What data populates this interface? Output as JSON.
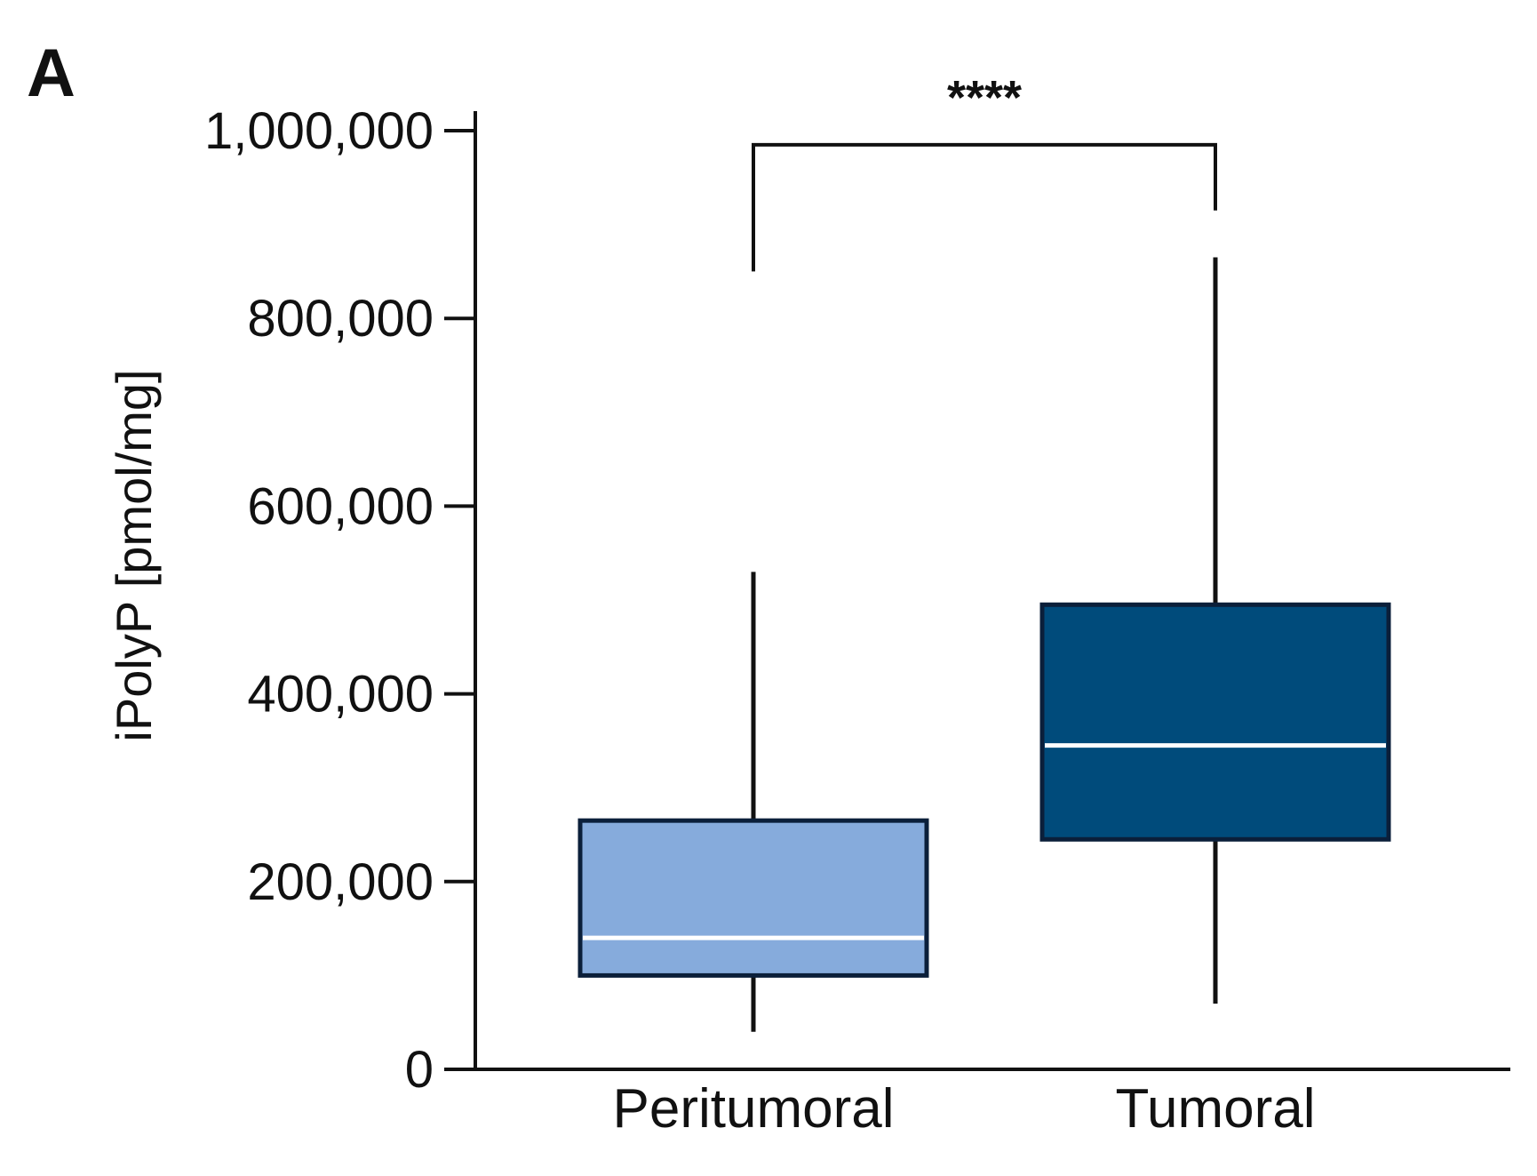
{
  "panel_label": "A",
  "chart_data": {
    "type": "box",
    "ylabel": "iPolyP [pmol/mg]",
    "xlabel": "",
    "ylim": [
      0,
      1000000
    ],
    "yticks": [
      0,
      200000,
      400000,
      600000,
      800000,
      1000000
    ],
    "ytick_labels": [
      "0",
      "200,000",
      "400,000",
      "600,000",
      "800,000",
      "1,000,000"
    ],
    "categories": [
      "Peritumoral",
      "Tumoral"
    ],
    "boxes": [
      {
        "category": "Peritumoral",
        "min": 40000,
        "q1": 100000,
        "median": 140000,
        "q3": 265000,
        "max": 530000,
        "color": "#86ABDC"
      },
      {
        "category": "Tumoral",
        "min": 70000,
        "q1": 245000,
        "median": 345000,
        "q3": 495000,
        "max": 865000,
        "color": "#004B7B"
      }
    ],
    "significance": {
      "label": "****",
      "between": [
        "Peritumoral",
        "Tumoral"
      ],
      "bracket_y": 985000,
      "left_leg_bottom": 850000,
      "right_leg_bottom": 915000
    },
    "grid": false,
    "legend": "none",
    "colors": {
      "axis": "#111111",
      "box_edge": "#0B1F3A",
      "median_line": "#ffffff",
      "whisker": "#111111"
    }
  }
}
